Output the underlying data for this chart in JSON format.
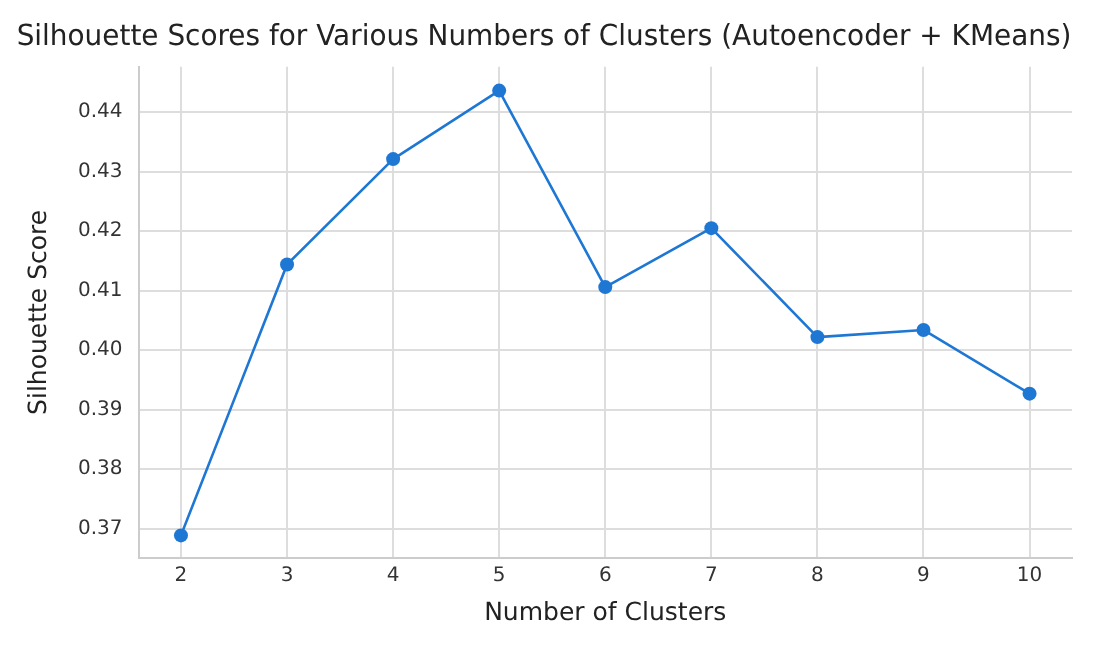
{
  "chart_data": {
    "type": "line",
    "title": "Silhouette Scores for Various Numbers of Clusters (Autoencoder + KMeans)",
    "xlabel": "Number of Clusters",
    "ylabel": "Silhouette Score",
    "x": [
      2,
      3,
      4,
      5,
      6,
      7,
      8,
      9,
      10
    ],
    "series": [
      {
        "color": "#1f77d4",
        "values": [
          0.3689,
          0.4144,
          0.4321,
          0.4436,
          0.4106,
          0.4205,
          0.4022,
          0.4034,
          0.3927
        ]
      }
    ],
    "xlim": [
      1.6,
      10.4
    ],
    "xticks": [
      2,
      3,
      4,
      5,
      6,
      7,
      8,
      9,
      10
    ],
    "ylim": [
      0.3651,
      0.4476
    ],
    "yticks": [
      0.37,
      0.38,
      0.39,
      {
        "value": 0.4,
        "label": "0.40"
      },
      0.41,
      0.42,
      0.43,
      0.44
    ],
    "grid": true,
    "marker": "circle",
    "line_style": "solid"
  }
}
